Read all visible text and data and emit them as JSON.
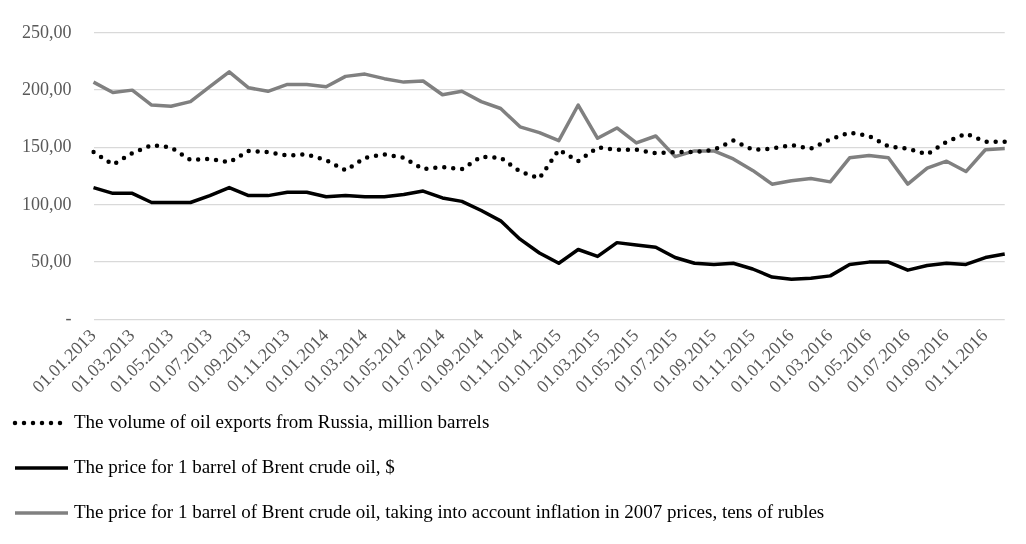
{
  "chart_data": {
    "type": "line",
    "categories": [
      "01.01.2013",
      null,
      "01.03.2013",
      null,
      "01.05.2013",
      null,
      "01.07.2013",
      null,
      "01.09.2013",
      null,
      "01.11.2013",
      null,
      "01.01.2014",
      null,
      "01.03.2014",
      null,
      "01.05.2014",
      null,
      "01.07.2014",
      null,
      "01.09.2014",
      null,
      "01.11.2014",
      null,
      "01.01.2015",
      null,
      "01.03.2015",
      null,
      "01.05.2015",
      null,
      "01.07.2015",
      null,
      "01.09.2015",
      null,
      "01.11.2015",
      null,
      "01.01.2016",
      null,
      "01.03.2016",
      null,
      "01.05.2016",
      null,
      "01.07.2016",
      null,
      "01.09.2016",
      null,
      "01.11.2016",
      null
    ],
    "series": [
      {
        "name": "The volume of oil exports from Russia, million barrels",
        "color": "#000000",
        "line_style": "dotted",
        "values": [
          146,
          135,
          145,
          152,
          150,
          139,
          140,
          137,
          147,
          146,
          143,
          144,
          139,
          130,
          141,
          144,
          141,
          131,
          133,
          131,
          142,
          141,
          129,
          123,
          148,
          138,
          150,
          148,
          148,
          145,
          146,
          146,
          148,
          156,
          148,
          149,
          152,
          149,
          157,
          163,
          160,
          151,
          149,
          144,
          155,
          162,
          155,
          155
        ]
      },
      {
        "name": "The price for 1 barrel of Brent crude oil, $",
        "color": "#000000",
        "line_style": "solid",
        "values": [
          115,
          110,
          110,
          102,
          102,
          102,
          108,
          115,
          108,
          108,
          111,
          111,
          107,
          108,
          107,
          107,
          109,
          112,
          106,
          103,
          95,
          86,
          70,
          58,
          49,
          61,
          55,
          67,
          65,
          63,
          54,
          49,
          48,
          49,
          44,
          37,
          35,
          36,
          38,
          48,
          50,
          50,
          43,
          47,
          49,
          48,
          54,
          57
        ]
      },
      {
        "name": "The price for 1 barrel of Brent crude oil, taking into account inflation in 2007 prices, tens of rubles",
        "color": "#808080",
        "line_style": "solid",
        "values": [
          207,
          198,
          200,
          187,
          186,
          190,
          203,
          216,
          202,
          199,
          205,
          205,
          203,
          212,
          214,
          210,
          207,
          208,
          196,
          199,
          190,
          184,
          168,
          163,
          156,
          187,
          158,
          167,
          154,
          160,
          142,
          147,
          147,
          140,
          130,
          118,
          121,
          123,
          120,
          141,
          143,
          141,
          118,
          132,
          138,
          129,
          148,
          149
        ]
      }
    ],
    "ylim": [
      0,
      250
    ],
    "yticks": [
      {
        "value": 0,
        "label": "-"
      },
      {
        "value": 50,
        "label": "50,00"
      },
      {
        "value": 100,
        "label": "100,00"
      },
      {
        "value": 150,
        "label": "150,00"
      },
      {
        "value": 200,
        "label": "200,00"
      },
      {
        "value": 250,
        "label": "250,00"
      }
    ],
    "grid": "y",
    "legend": "bottom",
    "marker": "none"
  }
}
